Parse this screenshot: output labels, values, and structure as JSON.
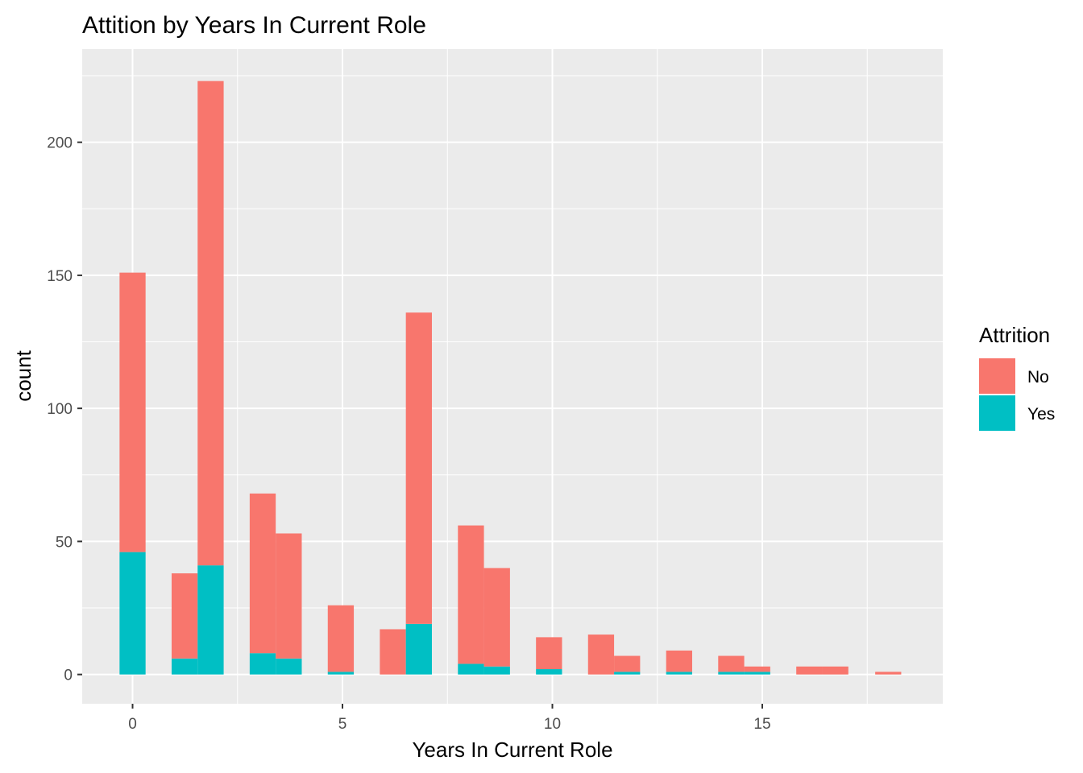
{
  "chart_data": {
    "type": "bar",
    "stacked": true,
    "title": "Attition by Years In Current Role",
    "xlabel": "Years In Current Role",
    "ylabel": "count",
    "xlim": [
      -1.2,
      19.3
    ],
    "ylim": [
      -11,
      235
    ],
    "x_ticks": [
      0,
      5,
      10,
      15
    ],
    "y_ticks": [
      0,
      50,
      100,
      150,
      200
    ],
    "grid": true,
    "bin_width": 0.62,
    "legend": {
      "title": "Attrition",
      "position": "right",
      "entries": [
        {
          "name": "No",
          "color": "#F8766D"
        },
        {
          "name": "Yes",
          "color": "#00BFC4"
        }
      ]
    },
    "series": [
      {
        "name": "Yes",
        "color": "#00BFC4",
        "x": [
          0.0,
          1.24,
          1.86,
          3.1,
          3.72,
          4.96,
          6.2,
          6.82,
          8.06,
          8.68,
          9.92,
          11.16,
          11.78,
          13.02,
          14.26,
          14.88,
          16.12,
          16.74,
          18.0
        ],
        "values": [
          46,
          6,
          41,
          8,
          6,
          1,
          0,
          19,
          4,
          3,
          2,
          0,
          1,
          1,
          1,
          1,
          0,
          0,
          0
        ]
      },
      {
        "name": "No",
        "color": "#F8766D",
        "x": [
          0.0,
          1.24,
          1.86,
          3.1,
          3.72,
          4.96,
          6.2,
          6.82,
          8.06,
          8.68,
          9.92,
          11.16,
          11.78,
          13.02,
          14.26,
          14.88,
          16.12,
          16.74,
          18.0
        ],
        "values": [
          105,
          32,
          182,
          60,
          47,
          25,
          17,
          117,
          52,
          37,
          12,
          15,
          6,
          8,
          6,
          2,
          3,
          3,
          1
        ]
      }
    ]
  }
}
